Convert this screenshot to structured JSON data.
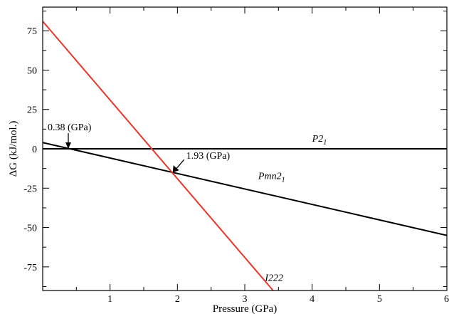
{
  "chart_data": {
    "type": "line",
    "xlabel": "Pressure (GPa)",
    "ylabel": "ΔG (kJ/mol.)",
    "xlim": [
      0,
      6
    ],
    "ylim": [
      -90,
      90
    ],
    "x_ticks": [
      1,
      2,
      3,
      4,
      5,
      6
    ],
    "x_tick_labels": [
      "1",
      "2",
      "3",
      "4",
      "5",
      "6"
    ],
    "y_ticks": [
      75,
      50,
      25,
      0,
      -25,
      -50,
      -75
    ],
    "y_tick_labels": [
      "75",
      "50",
      "25",
      "0",
      "-25",
      "-50",
      "-75"
    ],
    "grid": false,
    "series": [
      {
        "key": "P2_1",
        "label_main": "P2",
        "label_sub": "1",
        "color": "#000000",
        "points": [
          [
            0,
            0
          ],
          [
            6,
            0
          ]
        ]
      },
      {
        "key": "Pmn2_1",
        "label_main": "Pmn2",
        "label_sub": "1",
        "color": "#000000",
        "points": [
          [
            0,
            4
          ],
          [
            6,
            -55
          ]
        ]
      },
      {
        "key": "I222",
        "label_main": "I222",
        "label_sub": "",
        "color": "#e8362b",
        "points": [
          [
            0,
            81
          ],
          [
            3.42,
            -90
          ]
        ]
      }
    ],
    "annotations": [
      {
        "text": "0.38 (GPa)",
        "x": 0.38,
        "y": 0
      },
      {
        "text": "1.93 (GPa)",
        "x": 1.93,
        "y": -15
      }
    ]
  }
}
